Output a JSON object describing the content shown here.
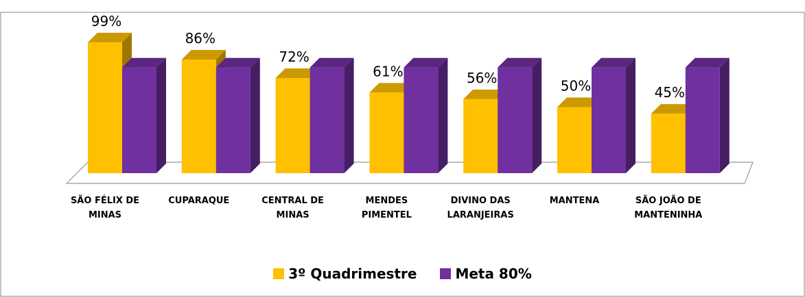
{
  "chart_data": {
    "type": "bar3d",
    "categories": [
      "SÃO FÉLIX DE MINAS",
      "CUPARAQUE",
      "CENTRAL DE MINAS",
      "MENDES PIMENTEL",
      "DIVINO DAS LARANJEIRAS",
      "MANTENA",
      "SÃO JOÃO DE MANTENINHA"
    ],
    "series": [
      {
        "name": "3º Quadrimestre",
        "color": "#FFC000",
        "values": [
          99,
          86,
          72,
          61,
          56,
          50,
          45
        ],
        "value_labels": [
          "99%",
          "86%",
          "72%",
          "61%",
          "56%",
          "50%",
          "45%"
        ]
      },
      {
        "name": "Meta 80%",
        "color": "#7030A0",
        "values": [
          80,
          80,
          80,
          80,
          80,
          80,
          80
        ]
      }
    ],
    "ylim": [
      0,
      100
    ],
    "legend": "bottom"
  }
}
